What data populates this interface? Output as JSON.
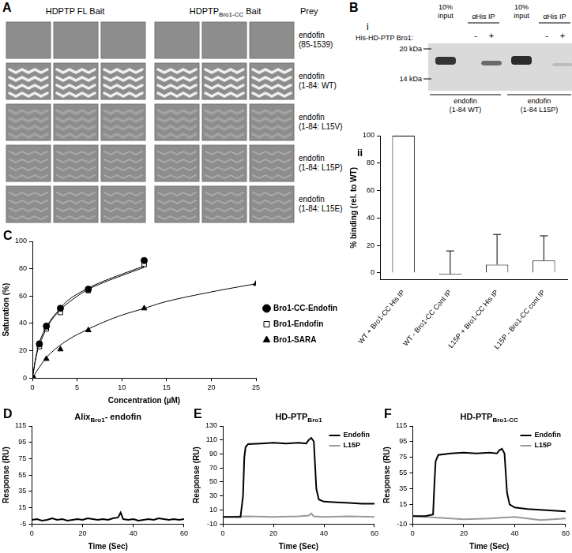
{
  "panel_A": {
    "label": "A",
    "columns": [
      {
        "main": "HDPTP FL Bait"
      },
      {
        "main": "HDPTP",
        "sub": "Bro1-CC",
        "tail": " Bait"
      }
    ],
    "prey_header": "Prey",
    "prey": [
      [
        "endofin",
        "(85-1539)"
      ],
      [
        "endofin",
        "(1-84: WT)"
      ],
      [
        "endofin",
        "(1-84: L15V)"
      ],
      [
        "endofin",
        "(1-84: L15P)"
      ],
      [
        "endofin",
        "(1-84: L15E)"
      ]
    ]
  },
  "panel_B_i": {
    "label": "B",
    "sublabel": "i",
    "row_label": "His-HD-PTP Bro1:",
    "input_header": [
      "10%",
      "input"
    ],
    "ip_header": "αHis IP",
    "signs": [
      "-",
      "+"
    ],
    "markers": [
      "20 kDa",
      "14 kDa"
    ],
    "samples": [
      [
        "endofin",
        "(1-84 WT)"
      ],
      [
        "endofin",
        "(1-84 L15P)"
      ]
    ]
  },
  "chart_data": [
    {
      "type": "bar",
      "panel_label": "ii",
      "y_label": "% binding (rel. to WT)",
      "categories": [
        "WT + Bro1-CC His IP",
        "WT - Bro1-CC Cont IP",
        "L15P + Bro1-CC His IP",
        "L15P - Bro1-CC cont IP"
      ],
      "values": [
        100,
        -1,
        6,
        9
      ],
      "errors": [
        0,
        17,
        22,
        18
      ],
      "color": "#ffffff",
      "ylim": [
        -5,
        100
      ],
      "yticks": [
        0,
        20,
        40,
        60,
        80,
        100
      ],
      "grid": false,
      "legend": false
    },
    {
      "type": "scatter",
      "panel_label": "C",
      "x_label": "Concentration (µM)",
      "y_label": "Saturation (%)",
      "xlim": [
        0,
        25
      ],
      "xticks": [
        0,
        5,
        10,
        15,
        20,
        25
      ],
      "ylim": [
        0,
        100
      ],
      "yticks": [
        0,
        20,
        40,
        60,
        80,
        100
      ],
      "grid": false,
      "legend": "right",
      "series": [
        {
          "name": "Bro1-CC-Endofin",
          "color": "#000000",
          "marker": "filled_circle",
          "x": [
            0,
            0.78,
            1.56,
            3.13,
            6.25,
            12.5
          ],
          "values": [
            0,
            25,
            38,
            51,
            65,
            86
          ],
          "fit": {
            "x": [
              0,
              0.5,
              1,
              2,
              3,
              4,
              6,
              8,
              10,
              12.5
            ],
            "values": [
              0,
              19,
              30,
              42,
              50,
              57,
              65,
              71,
              76,
              82
            ]
          }
        },
        {
          "name": "Bro1-Endofin",
          "color": "#000000",
          "marker": "open_square",
          "x": [
            0,
            0.78,
            1.56,
            3.13,
            6.25,
            12.5
          ],
          "values": [
            0,
            23,
            36,
            48,
            64,
            83
          ],
          "fit": {
            "x": [
              0,
              0.5,
              1,
              2,
              3,
              4,
              6,
              8,
              10,
              12.5
            ],
            "values": [
              0,
              18,
              28,
              41,
              49,
              55,
              64,
              70,
              75,
              81
            ]
          }
        },
        {
          "name": "Bro1-SARA",
          "color": "#000000",
          "marker": "filled_triangle",
          "x": [
            0,
            1.56,
            3.13,
            6.25,
            12.5,
            25
          ],
          "values": [
            0,
            14,
            21,
            35,
            51,
            69
          ],
          "fit": {
            "x": [
              0,
              1,
              2,
              4,
              6,
              8,
              10,
              12.5,
              15,
              20,
              25
            ],
            "values": [
              0,
              10,
              18,
              28,
              35,
              41,
              46,
              51,
              56,
              63,
              69
            ]
          }
        }
      ]
    },
    {
      "type": "line",
      "panel_label": "D",
      "title": {
        "main": "Alix",
        "sub": "Bro1",
        "tail": "- endofin"
      },
      "x_label": "Time (Sec)",
      "y_label": "Response (RU)",
      "xlim": [
        0,
        60
      ],
      "xticks": [
        0,
        20,
        40,
        60
      ],
      "ylim": [
        -5,
        115
      ],
      "yticks": [
        -5,
        15,
        35,
        55,
        75,
        95,
        115
      ],
      "grid": false,
      "legend": false,
      "series": [
        {
          "color": "#000000",
          "x": [
            0,
            2,
            4,
            6,
            8,
            10,
            12,
            14,
            16,
            18,
            20,
            22,
            24,
            26,
            28,
            30,
            32,
            34,
            35,
            36,
            38,
            40,
            42,
            44,
            46,
            48,
            50,
            52,
            54,
            56,
            58,
            60
          ],
          "values": [
            0,
            1,
            -1,
            0,
            2,
            0,
            1,
            -1,
            0,
            1,
            0,
            2,
            1,
            0,
            1,
            0,
            2,
            3,
            9,
            1,
            0,
            1,
            -1,
            0,
            1,
            0,
            2,
            1,
            0,
            1,
            0,
            1
          ]
        }
      ]
    },
    {
      "type": "line",
      "panel_label": "E",
      "title": {
        "main": "HD-PTP",
        "sub": "Bro1",
        "tail": ""
      },
      "x_label": "Time (Sec)",
      "y_label": "Response (RU)",
      "xlim": [
        0,
        60
      ],
      "xticks": [
        0,
        20,
        40,
        60
      ],
      "ylim": [
        -10,
        130
      ],
      "yticks": [
        -10,
        10,
        30,
        50,
        70,
        90,
        110,
        130
      ],
      "grid": false,
      "legend": "upper right",
      "series": [
        {
          "name": "Endofin",
          "color": "#000000",
          "x": [
            0,
            4,
            7,
            8,
            8.5,
            9,
            10,
            15,
            20,
            25,
            30,
            33,
            34,
            35,
            36,
            37,
            38,
            40,
            45,
            50,
            55,
            60
          ],
          "values": [
            0,
            0,
            0,
            30,
            85,
            100,
            104,
            105,
            106,
            105,
            106,
            105,
            110,
            113,
            108,
            40,
            25,
            22,
            21,
            20,
            19,
            19
          ]
        },
        {
          "name": "L15P",
          "color": "#999999",
          "x": [
            0,
            10,
            20,
            30,
            34,
            35,
            36,
            40,
            50,
            60
          ],
          "values": [
            0,
            1,
            0,
            1,
            2,
            5,
            1,
            0,
            1,
            0
          ]
        }
      ]
    },
    {
      "type": "line",
      "panel_label": "F",
      "title": {
        "main": "HD-PTP",
        "sub": "Bro1-CC",
        "tail": ""
      },
      "x_label": "Time (Sec)",
      "y_label": "Response (RU)",
      "xlim": [
        0,
        60
      ],
      "xticks": [
        0,
        20,
        40,
        60
      ],
      "ylim": [
        -10,
        115
      ],
      "yticks": [
        -10,
        15,
        35,
        55,
        75,
        95,
        115
      ],
      "grid": false,
      "legend": "upper right",
      "series": [
        {
          "name": "Endofin",
          "color": "#000000",
          "x": [
            0,
            5,
            8,
            8.5,
            9,
            10,
            15,
            20,
            25,
            30,
            33,
            34,
            35,
            36,
            37,
            38,
            40,
            45,
            50,
            55,
            60
          ],
          "values": [
            0,
            0,
            2,
            40,
            70,
            78,
            80,
            81,
            80,
            81,
            80,
            84,
            86,
            80,
            30,
            15,
            11,
            9,
            8,
            7,
            6
          ]
        },
        {
          "name": "L15P",
          "color": "#999999",
          "x": [
            0,
            10,
            20,
            30,
            40,
            50,
            60
          ],
          "values": [
            0,
            -2,
            -4,
            -3,
            -1,
            -5,
            -3
          ]
        }
      ]
    }
  ]
}
